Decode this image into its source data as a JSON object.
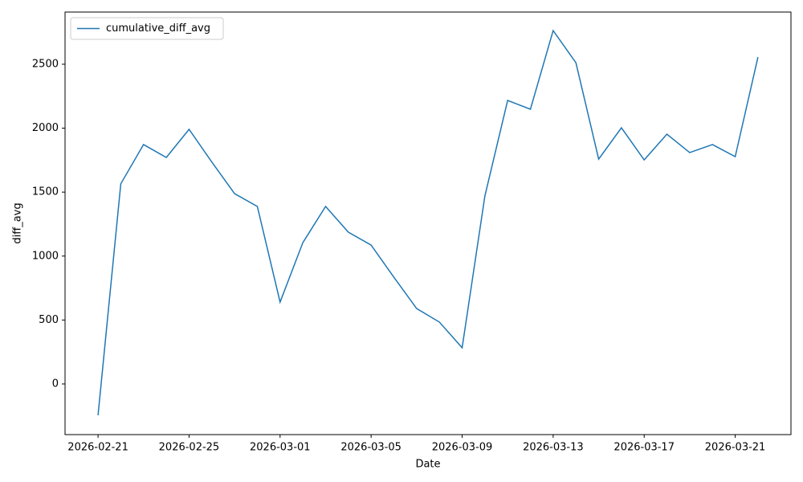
{
  "chart_data": {
    "type": "line",
    "x_label": "Date",
    "y_label": "diff_avg",
    "x": [
      "2026-02-21",
      "2026-02-22",
      "2026-02-23",
      "2026-02-24",
      "2026-02-25",
      "2026-02-26",
      "2026-02-27",
      "2026-02-28",
      "2026-03-01",
      "2026-03-02",
      "2026-03-03",
      "2026-03-04",
      "2026-03-05",
      "2026-03-06",
      "2026-03-07",
      "2026-03-08",
      "2026-03-09",
      "2026-03-10",
      "2026-03-11",
      "2026-03-12",
      "2026-03-13",
      "2026-03-14",
      "2026-03-15",
      "2026-03-16",
      "2026-03-17",
      "2026-03-18",
      "2026-03-19",
      "2026-03-20",
      "2026-03-21",
      "2026-03-22"
    ],
    "series": [
      {
        "name": "cumulative_diff_avg",
        "color": "#1f77b4",
        "values": [
          -245,
          1565,
          1872,
          1771,
          1991,
          1735,
          1488,
          1388,
          640,
          1105,
          1388,
          1187,
          1086,
          835,
          590,
          484,
          283,
          1470,
          2217,
          2148,
          2763,
          2512,
          1758,
          2003,
          1752,
          1953,
          1809,
          1872,
          1777,
          2556
        ]
      }
    ],
    "xlim": [
      "2026-02-19T13:12",
      "2026-03-23T10:48"
    ],
    "xticks": [
      "2026-02-21",
      "2026-02-25",
      "2026-03-01",
      "2026-03-05",
      "2026-03-09",
      "2026-03-13",
      "2026-03-17",
      "2026-03-21"
    ],
    "ylim": [
      -396,
      2908
    ],
    "yticks": [
      0,
      500,
      1000,
      1500,
      2000,
      2500
    ],
    "legend": "upper-left"
  }
}
